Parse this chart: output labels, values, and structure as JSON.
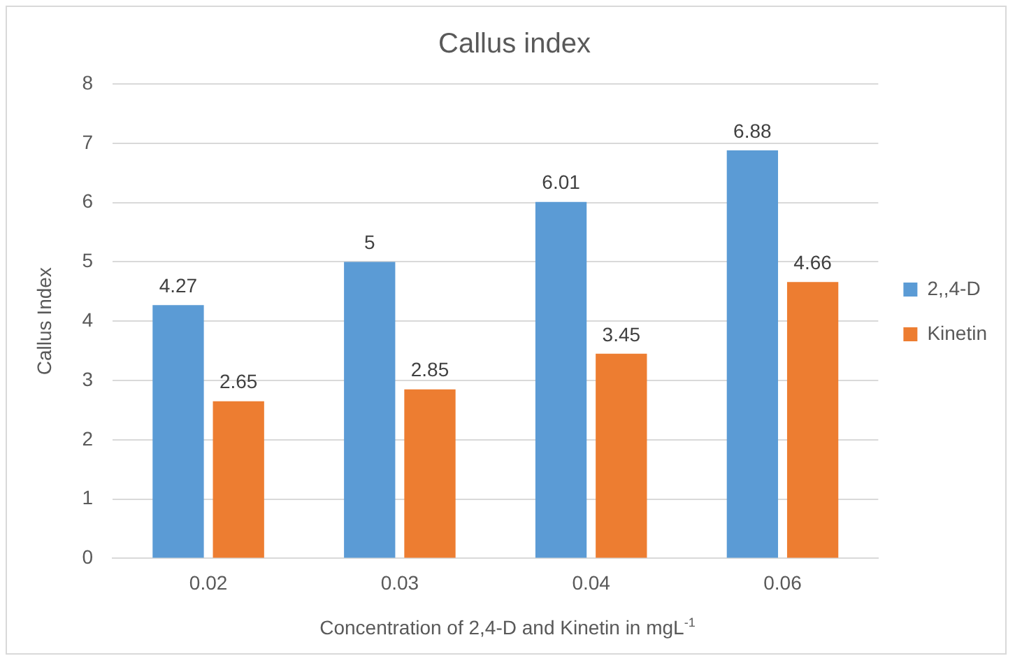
{
  "chart_data": {
    "type": "bar",
    "title": "Callus index",
    "xlabel": "Concentration of 2,4-D and Kinetin in mgL$^{-1}$",
    "ylabel": "Callus Index",
    "categories": [
      "0.02",
      "0.03",
      "0.04",
      "0.06"
    ],
    "series": [
      {
        "name": "2,,4-D",
        "color": "#5b9bd5",
        "values": [
          4.27,
          5,
          6.01,
          6.88
        ]
      },
      {
        "name": "Kinetin",
        "color": "#ed7d31",
        "values": [
          2.65,
          2.85,
          3.45,
          4.66
        ]
      }
    ],
    "ylim": [
      0,
      8
    ],
    "yticks": [
      0,
      1,
      2,
      3,
      4,
      5,
      6,
      7,
      8
    ],
    "grid": "y",
    "legend": "right",
    "data_labels": true
  }
}
